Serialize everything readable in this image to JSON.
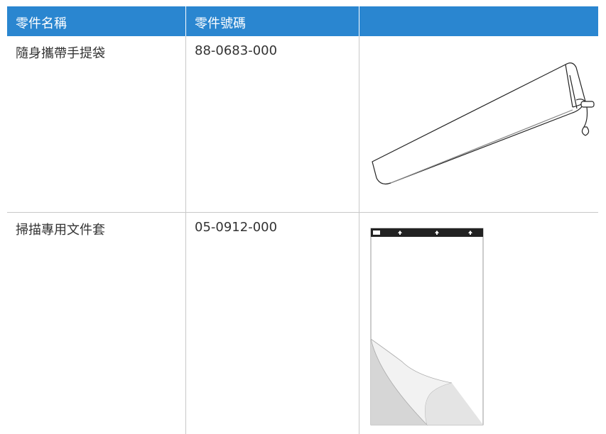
{
  "table": {
    "header": [
      "零件名稱",
      "零件號碼"
    ],
    "rows": [
      [
        "隨身攜帶手提袋",
        "88-0683-000"
      ],
      [
        "掃描專用文件套",
        "05-0912-000"
      ]
    ]
  }
}
